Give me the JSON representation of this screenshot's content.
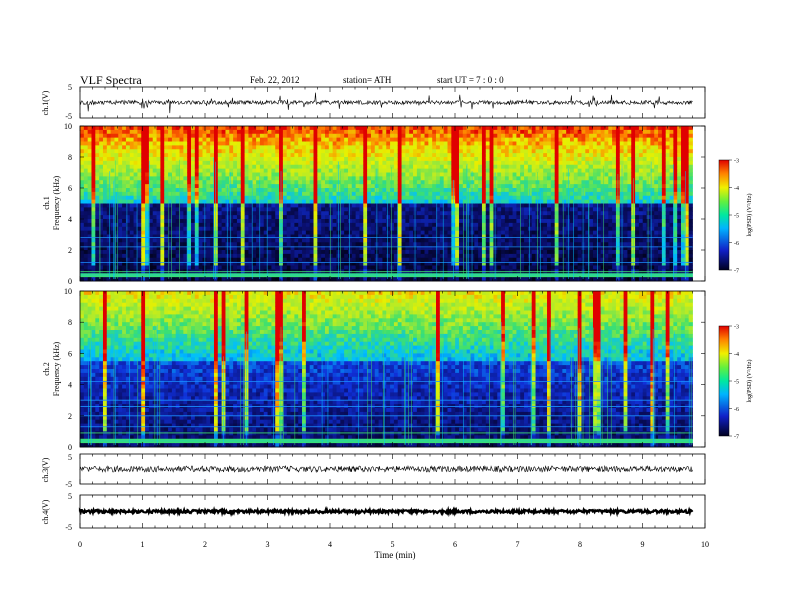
{
  "header": {
    "title": "VLF Spectra",
    "date": "Feb. 22, 2012",
    "station": "station= ATH",
    "start": "start  UT =   7 : 0 : 0"
  },
  "colors": {
    "spectrum": [
      "#000000",
      "#0a0a6e",
      "#1030d8",
      "#00c8ff",
      "#3ce070",
      "#e8f000",
      "#ff7a00",
      "#e00000"
    ]
  },
  "chart_data": [
    {
      "type": "line",
      "panel": "ch1-waveform",
      "ylabel": "ch.1(V)",
      "ylim": [
        -5,
        5
      ],
      "yticks": [
        "5",
        "-5"
      ],
      "level": 0,
      "noise": "bursty"
    },
    {
      "type": "heatmap",
      "panel": "ch1-spectrogram",
      "ylabel_channel": "ch.1",
      "ylabel": "Frequency (kHz)",
      "ylim": [
        0,
        10
      ],
      "yticks": [
        "0",
        "2",
        "4",
        "6",
        "8",
        "10"
      ],
      "xlim": [
        0,
        10
      ],
      "data_extent_min": 9.8,
      "background_cutoff_khz": 5.0,
      "colorbar": {
        "label": "log(PSD) (V²/Hz)",
        "range": [
          -7,
          -3
        ],
        "ticks": [
          "-3",
          "-4",
          "-5",
          "-6",
          "-7"
        ]
      }
    },
    {
      "type": "heatmap",
      "panel": "ch2-spectrogram",
      "ylabel_channel": "ch.2",
      "ylabel": "Frequency (kHz)",
      "ylim": [
        0,
        10
      ],
      "yticks": [
        "0",
        "2",
        "4",
        "6",
        "8",
        "10"
      ],
      "xlim": [
        0,
        10
      ],
      "data_extent_min": 9.8,
      "background_cutoff_khz": 5.5,
      "colorbar": {
        "label": "log(PSD) (V²/Hz)",
        "range": [
          -7,
          -3
        ],
        "ticks": [
          "-3",
          "-4",
          "-5",
          "-6",
          "-7"
        ]
      }
    },
    {
      "type": "line",
      "panel": "ch3-waveform",
      "ylabel": "ch.3(V)",
      "ylim": [
        -5,
        5
      ],
      "yticks": [
        "5",
        "-5"
      ],
      "level": 0,
      "noise": "dense"
    },
    {
      "type": "line",
      "panel": "ch4-waveform",
      "ylabel": "ch.4(V)",
      "ylim": [
        -5,
        5
      ],
      "yticks": [
        "5",
        "-5"
      ],
      "level": 0,
      "noise": "thick"
    }
  ],
  "xaxis": {
    "label": "Time (min)",
    "range": [
      0,
      10
    ],
    "ticks": [
      "0",
      "1",
      "2",
      "3",
      "4",
      "5",
      "6",
      "7",
      "8",
      "9",
      "10"
    ]
  }
}
